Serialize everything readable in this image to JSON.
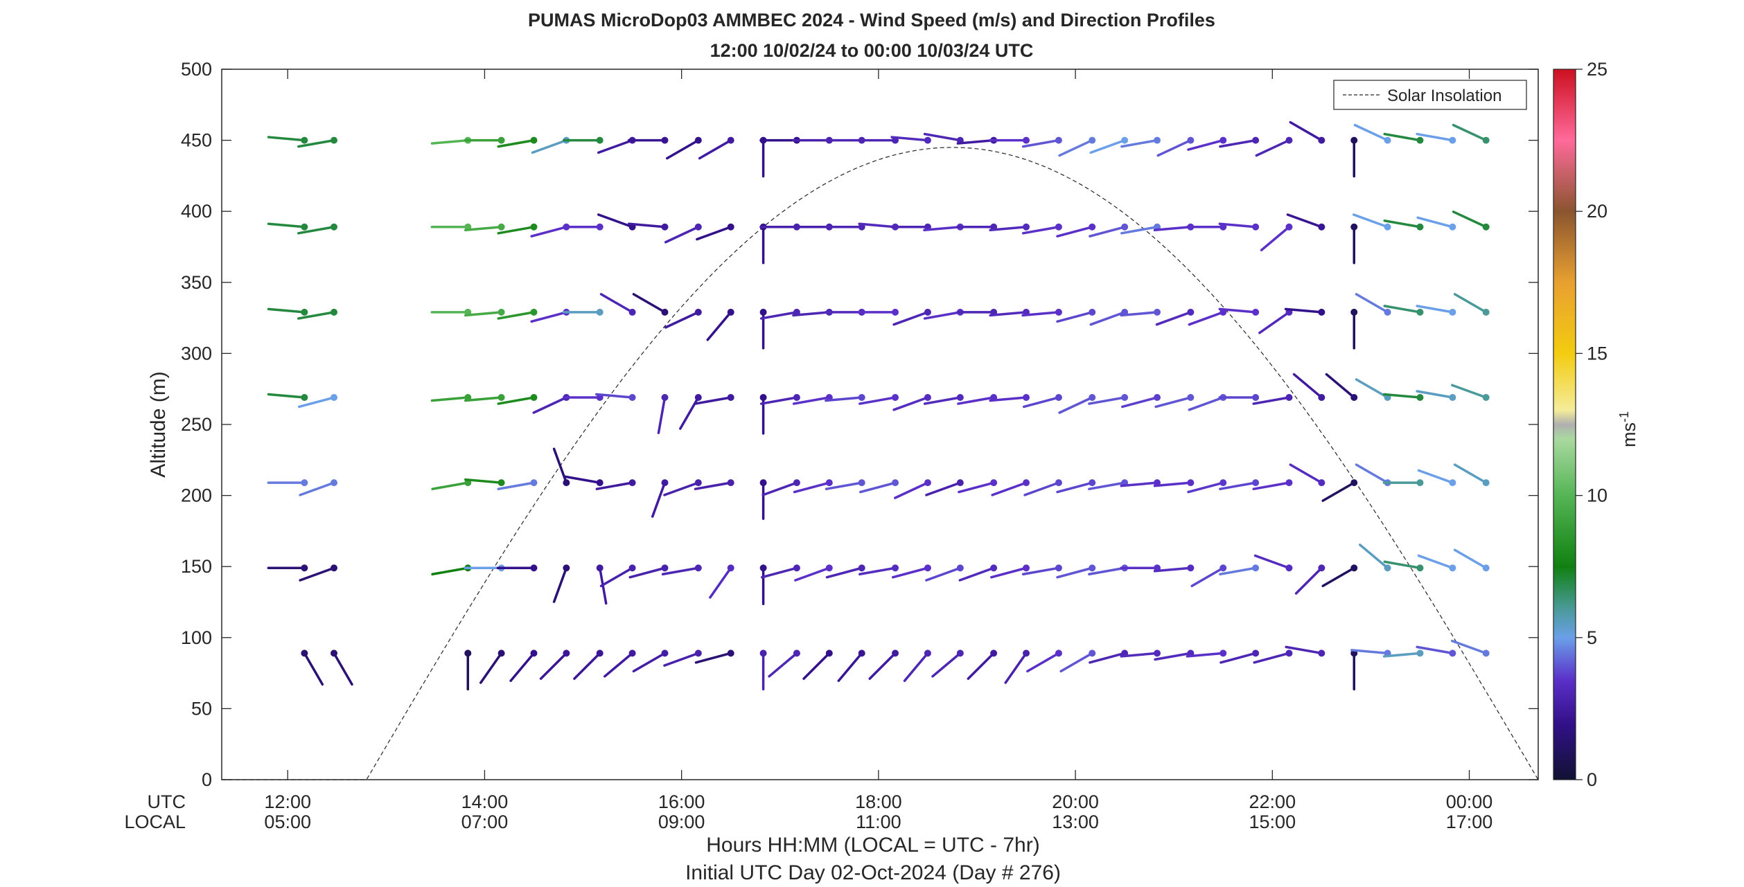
{
  "chart_data": {
    "type": "scatter",
    "title": "PUMAS MicroDop03 AMMBEC 2024 - Wind Speed (m/s) and Direction Profiles",
    "subtitle": "12:00 10/02/24 to 00:00 10/03/24  UTC",
    "xlabel": "Hours HH:MM  (LOCAL = UTC - 7hr)",
    "xlabel2": "Initial UTC Day 02-Oct-2024 (Day # 276)",
    "ylabel": "Altitude (m)",
    "xlim": [
      11.33,
      24.7
    ],
    "ylim": [
      0,
      500
    ],
    "yticks": [
      0,
      50,
      100,
      150,
      200,
      250,
      300,
      350,
      400,
      450,
      500
    ],
    "xticks_utc_label": "UTC",
    "xticks_local_label": "LOCAL",
    "xticks": [
      {
        "x": 12,
        "utc": "12:00",
        "local": "05:00"
      },
      {
        "x": 14,
        "utc": "14:00",
        "local": "07:00"
      },
      {
        "x": 16,
        "utc": "16:00",
        "local": "09:00"
      },
      {
        "x": 18,
        "utc": "18:00",
        "local": "11:00"
      },
      {
        "x": 20,
        "utc": "20:00",
        "local": "13:00"
      },
      {
        "x": 22,
        "utc": "22:00",
        "local": "15:00"
      },
      {
        "x": 24,
        "utc": "00:00",
        "local": "17:00"
      }
    ],
    "legend": {
      "entries": [
        "Solar Insolation"
      ],
      "placement": "top-right"
    },
    "colorbar": {
      "label": "ms",
      "label_exponent": "-1",
      "range": [
        0,
        25
      ],
      "ticks": [
        0,
        5,
        10,
        15,
        20,
        25
      ]
    },
    "solar_insolation": {
      "sunrise": 12.8,
      "sunset": 24.7,
      "peak_x": 18.75,
      "peak_y": 445
    },
    "altitudes": [
      89,
      149,
      209,
      269,
      329,
      389,
      450
    ],
    "times": [
      12.17,
      12.47,
      13.47,
      13.83,
      14.17,
      14.5,
      14.83,
      15.17,
      15.5,
      15.83,
      16.17,
      16.5,
      16.83,
      17.17,
      17.5,
      17.83,
      18.17,
      18.5,
      18.83,
      19.17,
      19.5,
      19.83,
      20.17,
      20.5,
      20.83,
      21.17,
      21.5,
      21.83,
      22.17,
      22.5,
      22.83,
      23.17,
      23.5,
      23.83,
      24.17
    ],
    "series": [
      {
        "altitude": 89,
        "speed": [
          1.5,
          1.5,
          0,
          1,
          1.5,
          2,
          2.3,
          2.3,
          2.5,
          2.6,
          2.8,
          1.5,
          2.8,
          3,
          2,
          2.2,
          2.5,
          3,
          3,
          2.5,
          2.8,
          3.5,
          4,
          3,
          3.2,
          3.2,
          3.5,
          3,
          3,
          3,
          1,
          4.5,
          5.5,
          4,
          4.5
        ],
        "direction": [
          330,
          330,
          0,
          0,
          35,
          40,
          45,
          45,
          50,
          60,
          70,
          75,
          0,
          50,
          45,
          40,
          45,
          40,
          50,
          45,
          35,
          60,
          60,
          75,
          85,
          80,
          85,
          75,
          75,
          100,
          0,
          95,
          85,
          100,
          110
        ]
      },
      {
        "altitude": 149,
        "speed": [
          1.5,
          1.5,
          0,
          7.5,
          5,
          2,
          1.5,
          2.5,
          2.8,
          2.8,
          3,
          3.3,
          2,
          3,
          3.5,
          3,
          3.3,
          3.5,
          3.8,
          3.2,
          3.5,
          3.8,
          4,
          4,
          3.5,
          3.3,
          3.8,
          4.5,
          3.3,
          3,
          1,
          5.5,
          6.5,
          5,
          5
        ],
        "direction": [
          90,
          70,
          0,
          80,
          90,
          90,
          20,
          350,
          60,
          75,
          80,
          35,
          0,
          75,
          70,
          75,
          80,
          75,
          70,
          70,
          75,
          80,
          75,
          80,
          90,
          85,
          60,
          80,
          110,
          45,
          60,
          130,
          100,
          110,
          120
        ]
      },
      {
        "altitude": 209,
        "speed": [
          4.5,
          4.5,
          0,
          9,
          8,
          4.5,
          1.5,
          2,
          2.5,
          2.5,
          2.8,
          2.8,
          2,
          3,
          3.5,
          4,
          4,
          3.5,
          2.8,
          3.5,
          3.5,
          3.8,
          3.8,
          4,
          3.5,
          3.5,
          3.6,
          3.8,
          3.5,
          3.3,
          1,
          4.5,
          6,
          5,
          5.5
        ],
        "direction": [
          90,
          70,
          0,
          80,
          95,
          80,
          160,
          100,
          80,
          20,
          70,
          80,
          0,
          70,
          75,
          80,
          75,
          65,
          70,
          75,
          70,
          70,
          75,
          80,
          85,
          85,
          75,
          80,
          80,
          120,
          60,
          120,
          90,
          110,
          120
        ]
      },
      {
        "altitude": 269,
        "speed": [
          7,
          5,
          0,
          9,
          9,
          8,
          3,
          3.5,
          3.8,
          3,
          2.5,
          2.5,
          2,
          3,
          3.5,
          3.8,
          3.5,
          3.3,
          3.2,
          3.5,
          3.5,
          3.8,
          4,
          4,
          3.7,
          4,
          4,
          3.8,
          3,
          2.5,
          1.5,
          5.5,
          7,
          5.5,
          6
        ],
        "direction": [
          95,
          75,
          0,
          85,
          85,
          80,
          65,
          90,
          95,
          10,
          30,
          80,
          0,
          80,
          80,
          85,
          80,
          70,
          80,
          80,
          85,
          75,
          65,
          80,
          75,
          75,
          70,
          90,
          80,
          130,
          130,
          120,
          95,
          100,
          110
        ]
      },
      {
        "altitude": 329,
        "speed": [
          7,
          7,
          0,
          10,
          9.5,
          8.5,
          3.5,
          5.5,
          3,
          1.5,
          2.5,
          2,
          2,
          3,
          3,
          3.2,
          3.5,
          3,
          3.5,
          3,
          3.2,
          3.5,
          3.8,
          4,
          4,
          3.2,
          3.5,
          3.5,
          3.2,
          2,
          1,
          4.5,
          6.5,
          5,
          6
        ],
        "direction": [
          95,
          80,
          0,
          90,
          85,
          80,
          75,
          90,
          120,
          120,
          65,
          40,
          0,
          80,
          85,
          90,
          90,
          70,
          80,
          90,
          85,
          85,
          75,
          70,
          85,
          70,
          70,
          95,
          55,
          95,
          0,
          120,
          100,
          100,
          120
        ]
      },
      {
        "altitude": 389,
        "speed": [
          7,
          7,
          0,
          10,
          9.5,
          8,
          3.5,
          3.5,
          2,
          2.5,
          3,
          2,
          2,
          2.8,
          2.8,
          3,
          3.2,
          3,
          3.5,
          3,
          3.2,
          3.5,
          3.5,
          4,
          4.5,
          3.5,
          3.5,
          3.5,
          3.5,
          2.2,
          1,
          5,
          7,
          5,
          7
        ],
        "direction": [
          95,
          80,
          0,
          90,
          85,
          80,
          75,
          90,
          110,
          95,
          65,
          70,
          0,
          90,
          90,
          90,
          95,
          90,
          85,
          90,
          85,
          80,
          75,
          75,
          80,
          85,
          90,
          95,
          50,
          110,
          0,
          110,
          100,
          105,
          115
        ]
      },
      {
        "altitude": 450,
        "speed": [
          7,
          7,
          0,
          10,
          9,
          8,
          5.5,
          7,
          2.5,
          2.2,
          2,
          2.5,
          2,
          2,
          2.8,
          3,
          3,
          3.2,
          3,
          2.5,
          3.5,
          4,
          4.5,
          5,
          4.5,
          4,
          3.5,
          3,
          3,
          2.5,
          1,
          5,
          7,
          5,
          6.5
        ],
        "direction": [
          95,
          80,
          0,
          85,
          90,
          80,
          70,
          90,
          70,
          90,
          60,
          60,
          0,
          90,
          90,
          90,
          90,
          95,
          100,
          85,
          90,
          80,
          65,
          70,
          80,
          65,
          75,
          80,
          65,
          120,
          0,
          115,
          100,
          100,
          115
        ]
      }
    ]
  }
}
